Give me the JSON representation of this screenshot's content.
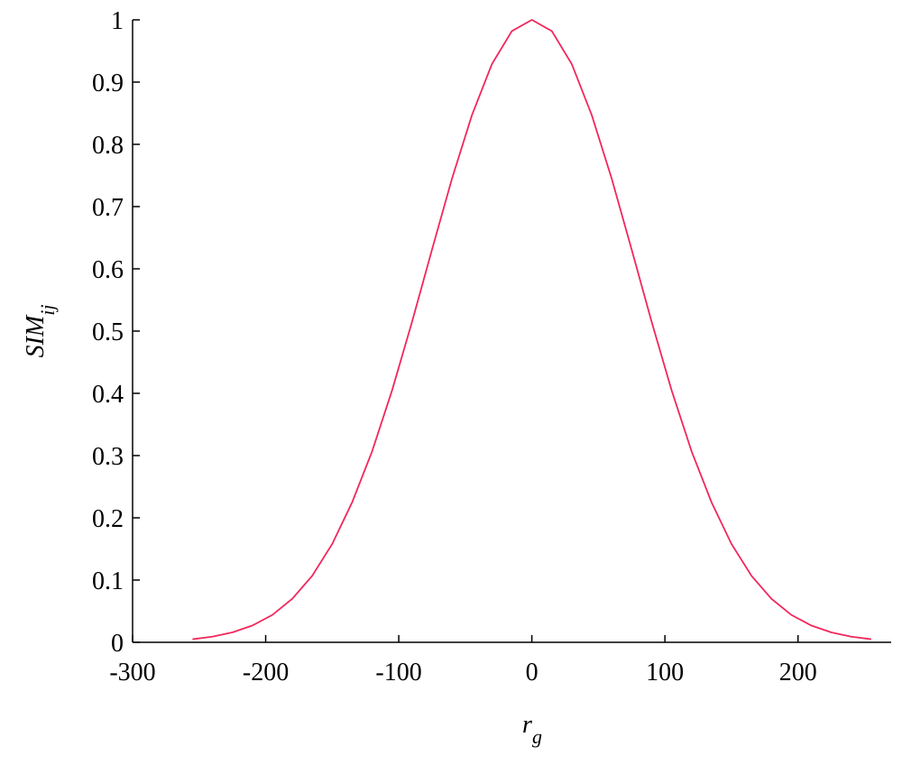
{
  "chart_data": {
    "type": "line",
    "x_label": "r",
    "x_label_sub": "g",
    "y_label": "SIM",
    "y_label_sub": "ij",
    "xlim": [
      -300,
      270
    ],
    "xticks": [
      -300,
      -200,
      -100,
      0,
      100,
      200
    ],
    "ylim": [
      0,
      1
    ],
    "yticks": [
      0,
      0.1,
      0.2,
      0.3,
      0.4,
      0.5,
      0.6,
      0.7,
      0.8,
      0.9,
      1
    ],
    "x": [
      -255,
      -240,
      -225,
      -210,
      -195,
      -180,
      -165,
      -150,
      -135,
      -120,
      -105,
      -90,
      -75,
      -60,
      -45,
      -30,
      -15,
      0,
      15,
      30,
      45,
      60,
      75,
      90,
      105,
      120,
      135,
      150,
      165,
      180,
      195,
      210,
      225,
      240,
      255
    ],
    "series": [
      {
        "color": "#f2275c",
        "values": [
          0.005,
          0.009,
          0.016,
          0.027,
          0.044,
          0.07,
          0.107,
          0.158,
          0.225,
          0.307,
          0.405,
          0.515,
          0.631,
          0.745,
          0.847,
          0.929,
          0.982,
          1,
          0.982,
          0.929,
          0.847,
          0.745,
          0.631,
          0.515,
          0.405,
          0.307,
          0.225,
          0.158,
          0.107,
          0.07,
          0.044,
          0.027,
          0.016,
          0.009,
          0.005
        ]
      }
    ]
  }
}
